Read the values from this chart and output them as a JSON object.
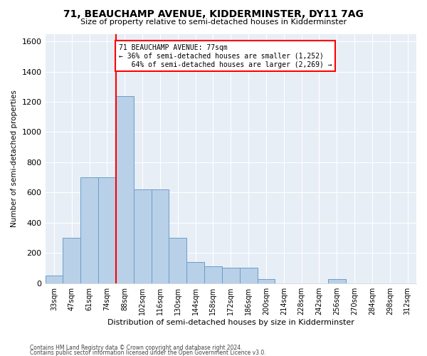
{
  "title1": "71, BEAUCHAMP AVENUE, KIDDERMINSTER, DY11 7AG",
  "title2": "Size of property relative to semi-detached houses in Kidderminster",
  "xlabel": "Distribution of semi-detached houses by size in Kidderminster",
  "ylabel": "Number of semi-detached properties",
  "categories": [
    "33sqm",
    "47sqm",
    "61sqm",
    "74sqm",
    "88sqm",
    "102sqm",
    "116sqm",
    "130sqm",
    "144sqm",
    "158sqm",
    "172sqm",
    "186sqm",
    "200sqm",
    "214sqm",
    "228sqm",
    "242sqm",
    "256sqm",
    "270sqm",
    "284sqm",
    "298sqm",
    "312sqm"
  ],
  "values": [
    50,
    300,
    700,
    700,
    1240,
    620,
    620,
    300,
    140,
    110,
    100,
    100,
    25,
    0,
    0,
    0,
    25,
    0,
    0,
    0,
    0
  ],
  "bar_color": "#b8d0e8",
  "bar_edge_color": "#6b9ec8",
  "annotation_line1": "71 BEAUCHAMP AVENUE: 77sqm",
  "annotation_line2": "← 36% of semi-detached houses are smaller (1,252)",
  "annotation_line3": "   64% of semi-detached houses are larger (2,269) →",
  "ylim": [
    0,
    1650
  ],
  "yticks": [
    0,
    200,
    400,
    600,
    800,
    1000,
    1200,
    1400,
    1600
  ],
  "footer1": "Contains HM Land Registry data © Crown copyright and database right 2024.",
  "footer2": "Contains public sector information licensed under the Open Government Licence v3.0.",
  "bg_color": "#e8eef6",
  "bar_width": 1.0,
  "red_line_index": 4
}
